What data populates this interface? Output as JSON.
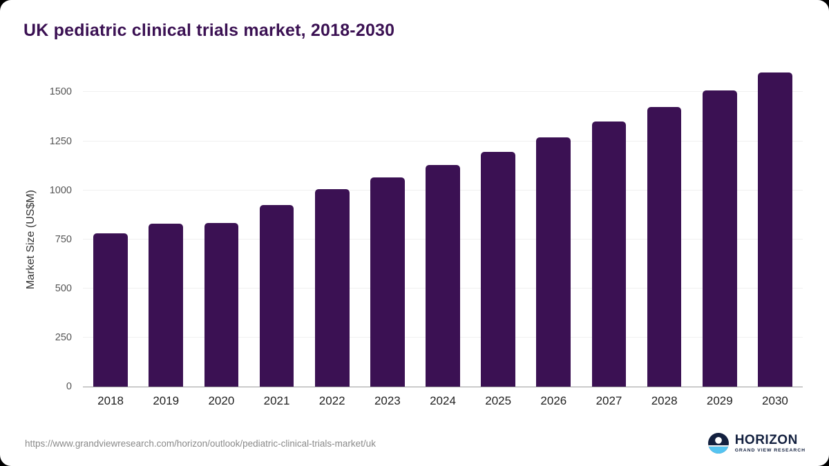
{
  "chart_data": {
    "type": "bar",
    "title": "UK pediatric clinical trials market, 2018-2030",
    "categories": [
      "2018",
      "2019",
      "2020",
      "2021",
      "2022",
      "2023",
      "2024",
      "2025",
      "2026",
      "2027",
      "2028",
      "2029",
      "2030"
    ],
    "values": [
      780,
      830,
      832,
      925,
      1005,
      1065,
      1130,
      1195,
      1270,
      1350,
      1425,
      1510,
      1600
    ],
    "xlabel": "",
    "ylabel": "Market Size (US$M)",
    "ylim": [
      0,
      1600
    ],
    "yticks": [
      0,
      250,
      500,
      750,
      1000,
      1250,
      1500
    ],
    "grid": true,
    "legend": "none",
    "bar_color": "#3b1153"
  },
  "colors": {
    "bar": "#3b1153",
    "title": "#3b1153",
    "axis": "#9b9b9b"
  },
  "footer": {
    "source_url": "https://www.grandviewresearch.com/horizon/outlook/pediatric-clinical-trials-market/uk",
    "logo": {
      "name": "HORIZON",
      "subtitle": "GRAND VIEW RESEARCH"
    }
  }
}
